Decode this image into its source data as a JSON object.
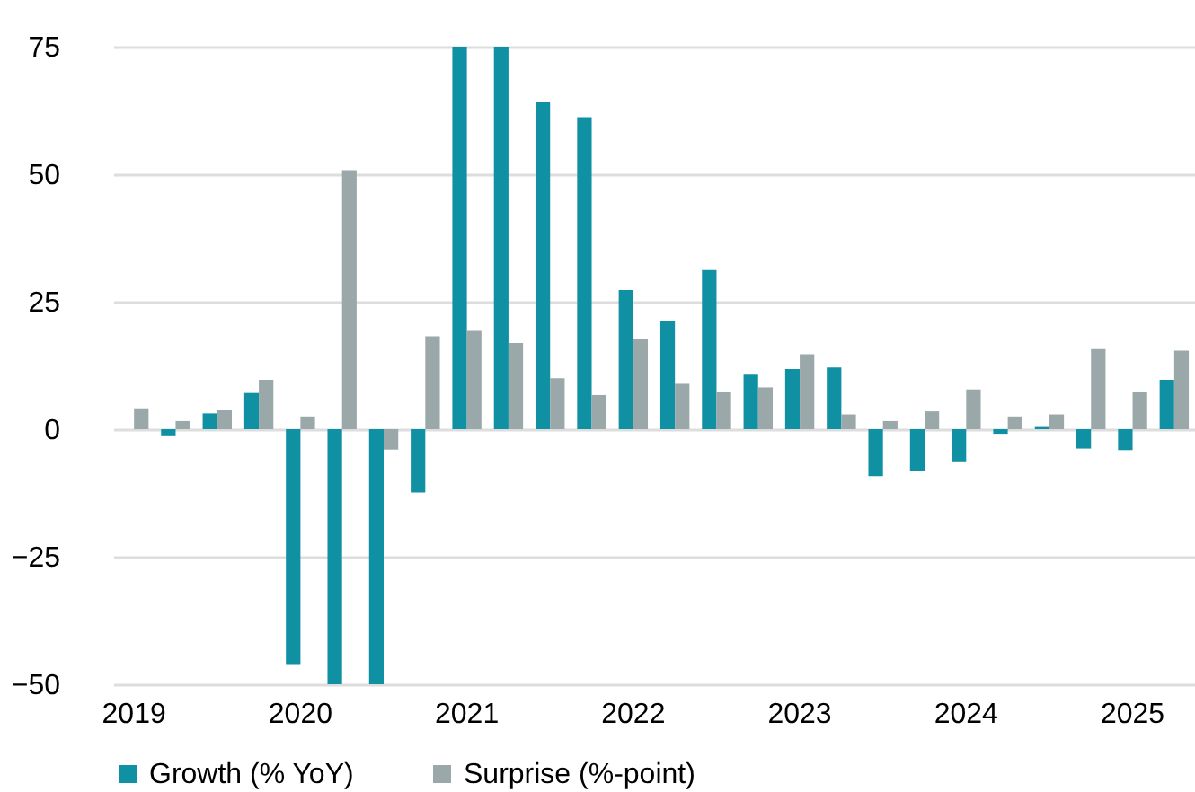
{
  "chart_data": {
    "type": "bar",
    "categories": [
      "2019",
      null,
      null,
      null,
      "2020",
      null,
      null,
      null,
      "2021",
      null,
      null,
      null,
      "2022",
      null,
      null,
      null,
      "2023",
      null,
      null,
      null,
      "2024",
      null,
      null,
      null,
      "2025",
      null
    ],
    "series": [
      {
        "name": "Growth (% YoY)",
        "color": "#1090a3",
        "values": [
          null,
          -1.2,
          3.1,
          7.1,
          -46.2,
          -50,
          -50,
          -12.4,
          75,
          75,
          64.1,
          61.2,
          27.3,
          21.2,
          31.2,
          10.7,
          11.8,
          12.1,
          -9.2,
          -8.1,
          -6.3,
          -0.9,
          0.6,
          -3.8,
          -4.1,
          9.7
        ]
      },
      {
        "name": "Surprise (%-point)",
        "color": "#9aa8aa",
        "values": [
          4.1,
          1.6,
          3.7,
          9.7,
          2.5,
          50.8,
          -4,
          18.2,
          19.3,
          16.9,
          10,
          6.7,
          17.6,
          8.9,
          7.4,
          8.2,
          14.7,
          2.9,
          1.6,
          3.5,
          7.8,
          2.5,
          2.9,
          15.7,
          7.4,
          15.4
        ]
      }
    ],
    "ylim": [
      -50,
      75
    ],
    "yticks": [
      -50,
      -25,
      0,
      25,
      50,
      75
    ],
    "grid": "y",
    "legend": "bottom"
  }
}
